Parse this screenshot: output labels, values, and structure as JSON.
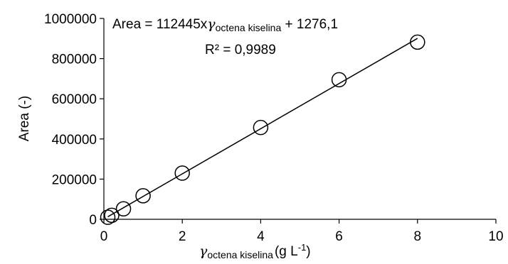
{
  "chart_data": {
    "type": "scatter",
    "title": "",
    "xlabel": {
      "symbol": "γ",
      "subscript": "octena kiselina",
      "unit_open": "(g L",
      "unit_sup": "-1",
      "unit_close": ")"
    },
    "ylabel": "Area (-)",
    "xlim": [
      0,
      10
    ],
    "ylim": [
      0,
      1000000
    ],
    "xticks": [
      "0",
      "2",
      "4",
      "6",
      "8",
      "10"
    ],
    "yticks": [
      "0",
      "200000",
      "400000",
      "600000",
      "800000",
      "1000000"
    ],
    "grid": false,
    "legend": "none",
    "series": [
      {
        "marker": "open-circle",
        "x": [
          0.1,
          0.2,
          0.5,
          1,
          2,
          4,
          6,
          8
        ],
        "y": [
          10000,
          20000,
          52000,
          117000,
          230000,
          457000,
          695000,
          882000
        ]
      }
    ],
    "trendline": {
      "type": "linear",
      "slope": 112445,
      "intercept": 1276.1,
      "x_range": [
        0.1,
        8
      ]
    },
    "equation": {
      "prefix": "Area = 112445x",
      "symbol": "γ",
      "subscript": "octena kiselina",
      "suffix": " + 1276,1",
      "r2": "R² = 0,9989"
    },
    "colors": {
      "marker_stroke": "#000000",
      "line": "#000000",
      "axis": "#000000"
    }
  }
}
